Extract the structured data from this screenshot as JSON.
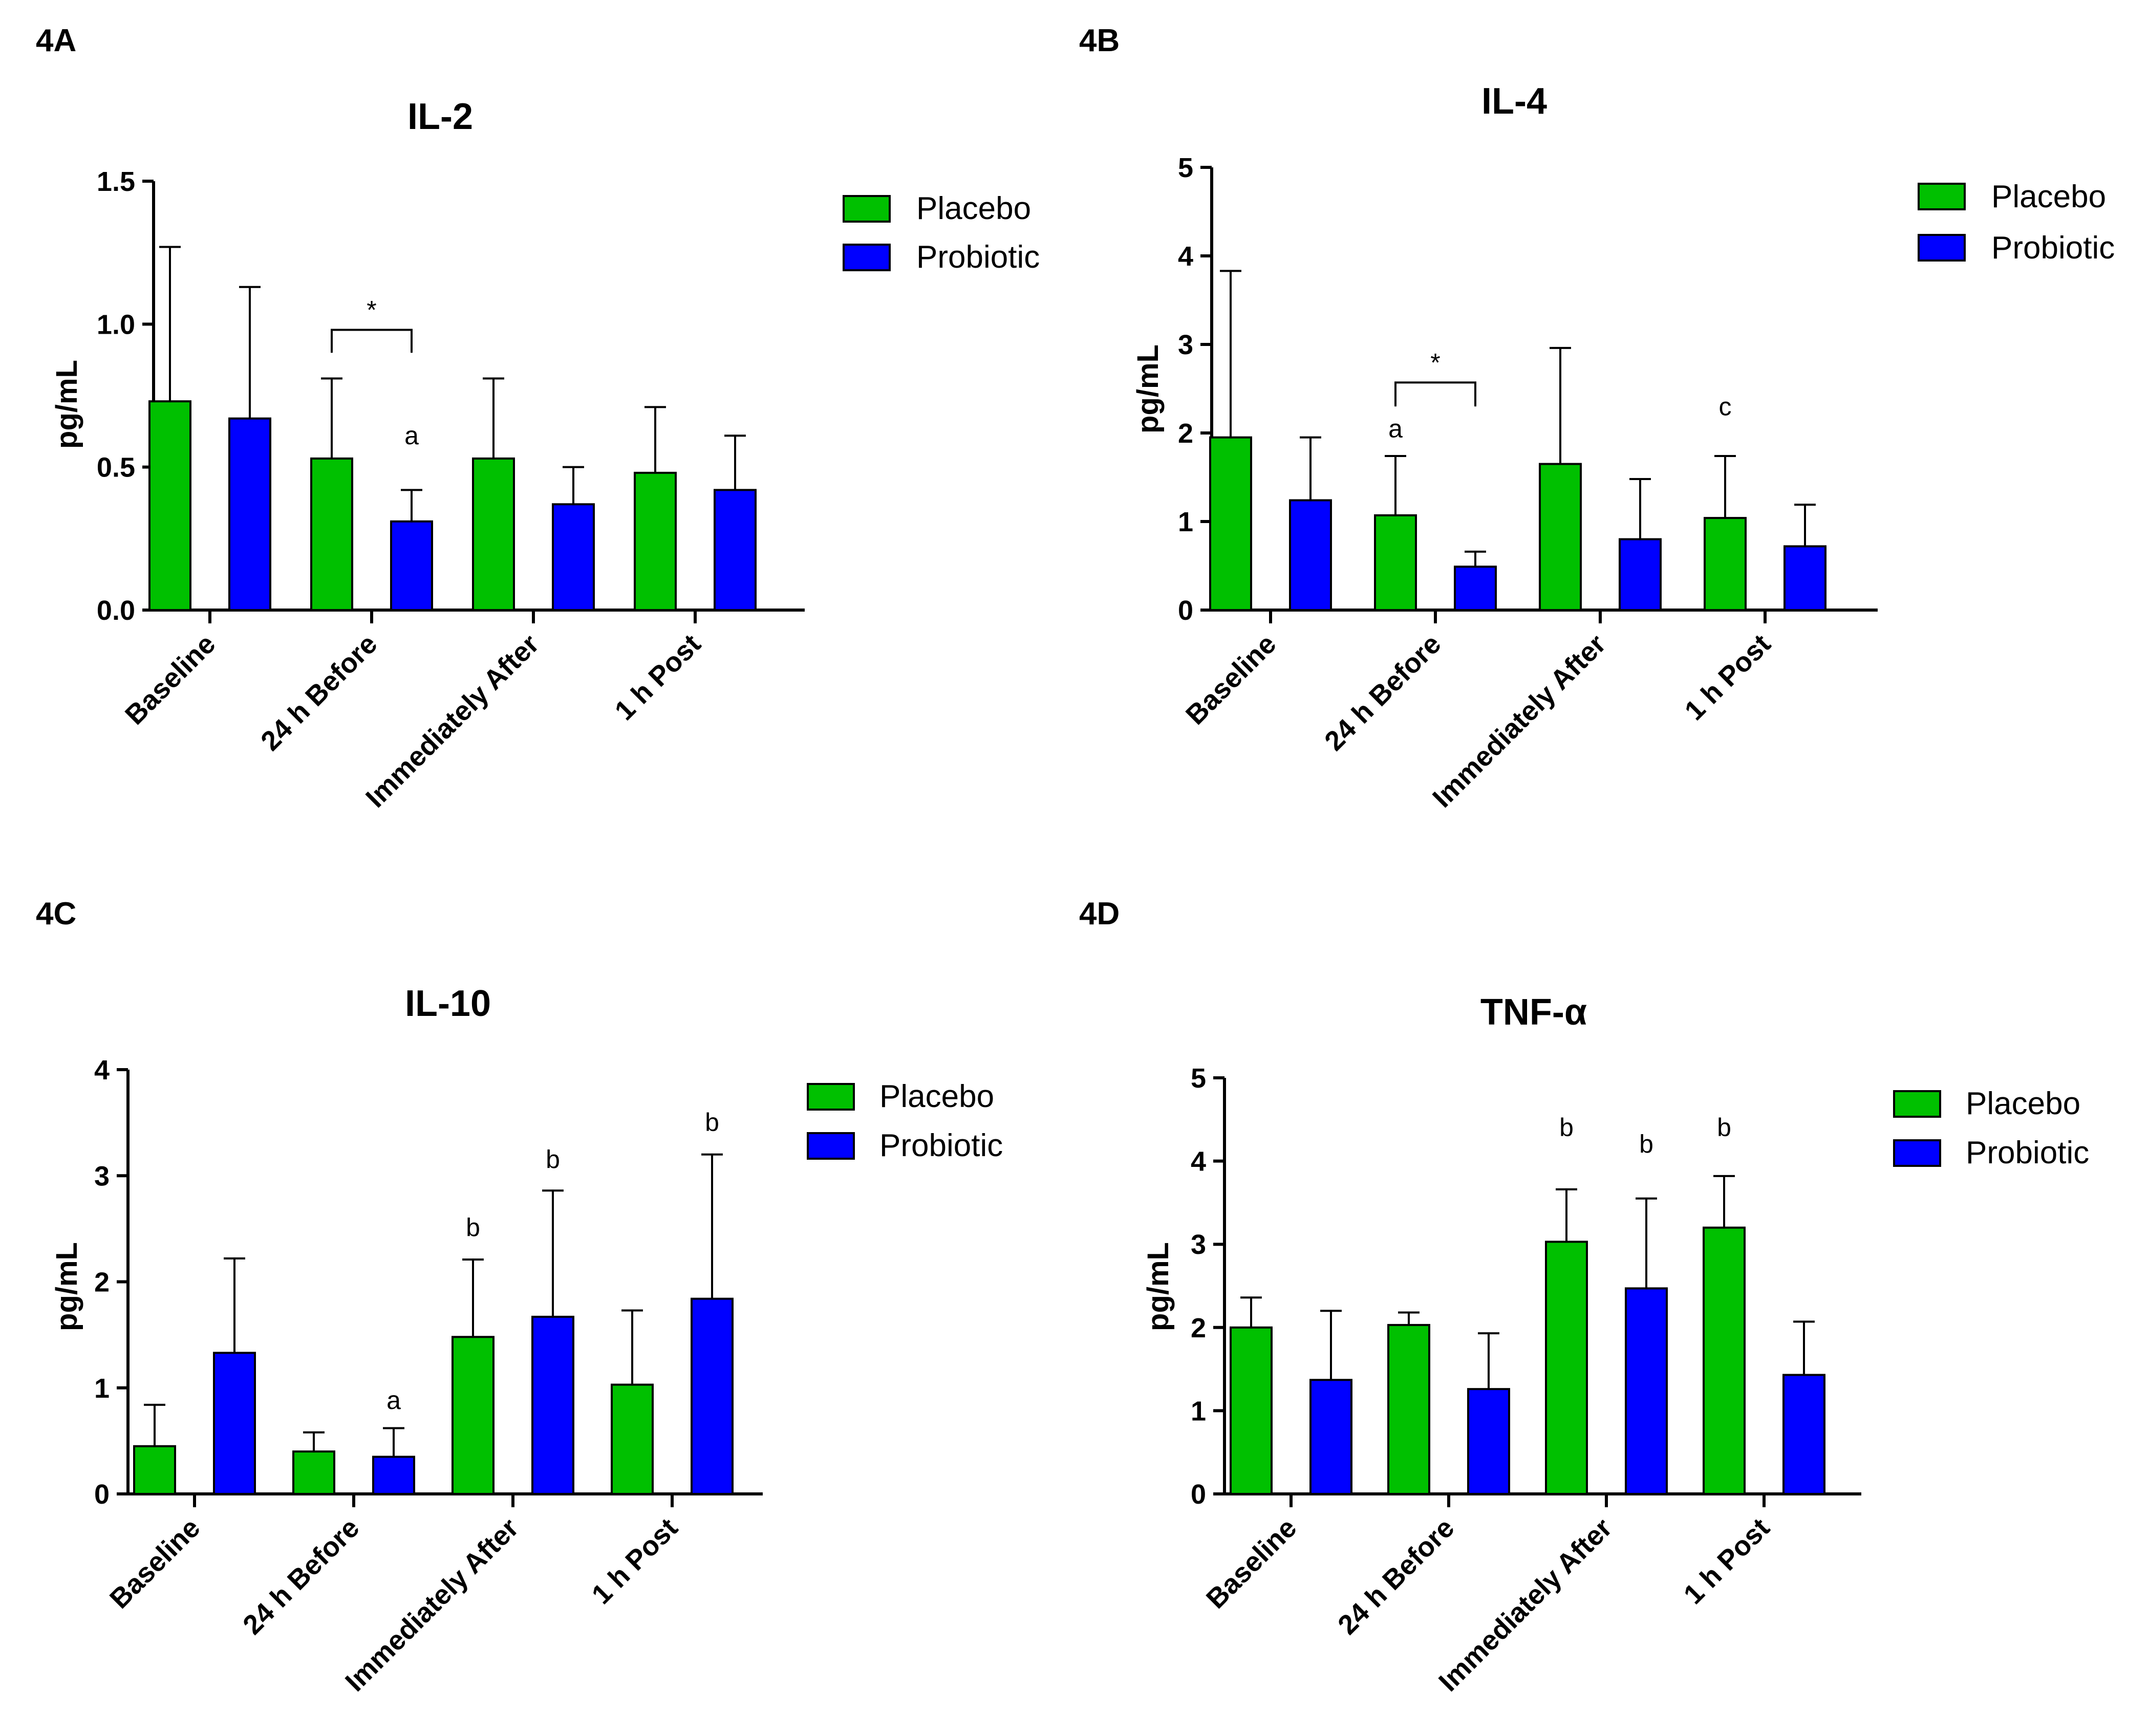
{
  "figure": {
    "series_names": [
      "Placebo",
      "Probiotic"
    ],
    "colors": {
      "placebo": "#00c000",
      "probiotic": "#0000ff"
    }
  },
  "chart_data": [
    {
      "panel": "4A",
      "type": "bar",
      "title": "IL-2",
      "ylabel": "pg/mL",
      "xlabel": "",
      "ylim": [
        0,
        1.5
      ],
      "yticks": [
        0.0,
        0.5,
        1.0,
        1.5
      ],
      "ytick_labels": [
        "0.0",
        "0.5",
        "1.0",
        "1.5"
      ],
      "categories": [
        "Baseline",
        "24 h Before",
        "Immediately After",
        "1 h Post"
      ],
      "series": [
        {
          "name": "Placebo",
          "values": [
            0.73,
            0.53,
            0.53,
            0.48
          ],
          "errors": [
            0.54,
            0.28,
            0.28,
            0.23
          ]
        },
        {
          "name": "Probiotic",
          "values": [
            0.67,
            0.31,
            0.37,
            0.42
          ],
          "errors": [
            0.46,
            0.11,
            0.13,
            0.19
          ]
        }
      ],
      "annotations": [
        {
          "text": "a",
          "category": 1,
          "series": 1,
          "y": 0.58
        }
      ],
      "brackets": [
        {
          "text": "*",
          "category": 1,
          "y": 0.98,
          "drop": 0.08
        }
      ],
      "legend": {
        "placement": "top-right",
        "entries": [
          "Placebo",
          "Probiotic"
        ]
      }
    },
    {
      "panel": "4B",
      "type": "bar",
      "title": "IL-4",
      "ylabel": "pg/mL",
      "xlabel": "",
      "ylim": [
        0,
        5
      ],
      "yticks": [
        0,
        1,
        2,
        3,
        4,
        5
      ],
      "ytick_labels": [
        "0",
        "1",
        "2",
        "3",
        "4",
        "5"
      ],
      "categories": [
        "Baseline",
        "24 h Before",
        "Immediately After",
        "1 h Post"
      ],
      "series": [
        {
          "name": "Placebo",
          "values": [
            1.95,
            1.07,
            1.65,
            1.04
          ],
          "errors": [
            1.88,
            0.67,
            1.31,
            0.7
          ]
        },
        {
          "name": "Probiotic",
          "values": [
            1.24,
            0.49,
            0.8,
            0.72
          ],
          "errors": [
            0.71,
            0.17,
            0.68,
            0.47
          ]
        }
      ],
      "annotations": [
        {
          "text": "a",
          "category": 1,
          "series": 0,
          "y": 1.95
        },
        {
          "text": "c",
          "category": 3,
          "series": 0,
          "y": 2.2
        }
      ],
      "brackets": [
        {
          "text": "*",
          "category": 1,
          "y": 2.57,
          "drop": 0.27
        }
      ],
      "legend": {
        "placement": "top-right",
        "entries": [
          "Placebo",
          "Probiotic"
        ]
      }
    },
    {
      "panel": "4C",
      "type": "bar",
      "title": "IL-10",
      "ylabel": "pg/mL",
      "xlabel": "",
      "ylim": [
        0,
        4
      ],
      "yticks": [
        0,
        1,
        2,
        3,
        4
      ],
      "ytick_labels": [
        "0",
        "1",
        "2",
        "3",
        "4"
      ],
      "categories": [
        "Baseline",
        "24 h Before",
        "Immediately After",
        "1 h Post"
      ],
      "series": [
        {
          "name": "Placebo",
          "values": [
            0.45,
            0.4,
            1.48,
            1.03
          ],
          "errors": [
            0.39,
            0.18,
            0.73,
            0.7
          ]
        },
        {
          "name": "Probiotic",
          "values": [
            1.33,
            0.35,
            1.67,
            1.84
          ],
          "errors": [
            0.89,
            0.27,
            1.19,
            1.36
          ]
        }
      ],
      "annotations": [
        {
          "text": "a",
          "category": 1,
          "series": 1,
          "y": 0.8
        },
        {
          "text": "b",
          "category": 2,
          "series": 0,
          "y": 2.43
        },
        {
          "text": "b",
          "category": 2,
          "series": 1,
          "y": 3.07
        },
        {
          "text": "b",
          "category": 3,
          "series": 1,
          "y": 3.42
        }
      ],
      "brackets": [],
      "legend": {
        "placement": "top-right",
        "entries": [
          "Placebo",
          "Probiotic"
        ]
      }
    },
    {
      "panel": "4D",
      "type": "bar",
      "title": "TNF-α",
      "ylabel": "pg/mL",
      "xlabel": "",
      "ylim": [
        0,
        5
      ],
      "yticks": [
        0,
        1,
        2,
        3,
        4,
        5
      ],
      "ytick_labels": [
        "0",
        "1",
        "2",
        "3",
        "4",
        "5"
      ],
      "categories": [
        "Baseline",
        "24 h Before",
        "Immediately After",
        "1 h Post"
      ],
      "series": [
        {
          "name": "Placebo",
          "values": [
            2.0,
            2.03,
            3.03,
            3.2
          ],
          "errors": [
            0.36,
            0.15,
            0.63,
            0.62
          ]
        },
        {
          "name": "Probiotic",
          "values": [
            1.37,
            1.26,
            2.47,
            1.43
          ],
          "errors": [
            0.83,
            0.67,
            1.08,
            0.64
          ]
        }
      ],
      "annotations": [
        {
          "text": "b",
          "category": 2,
          "series": 0,
          "y": 4.3
        },
        {
          "text": "b",
          "category": 2,
          "series": 1,
          "y": 4.1
        },
        {
          "text": "b",
          "category": 3,
          "series": 0,
          "y": 4.3
        }
      ],
      "brackets": [],
      "legend": {
        "placement": "top-right",
        "entries": [
          "Placebo",
          "Probiotic"
        ]
      }
    }
  ]
}
